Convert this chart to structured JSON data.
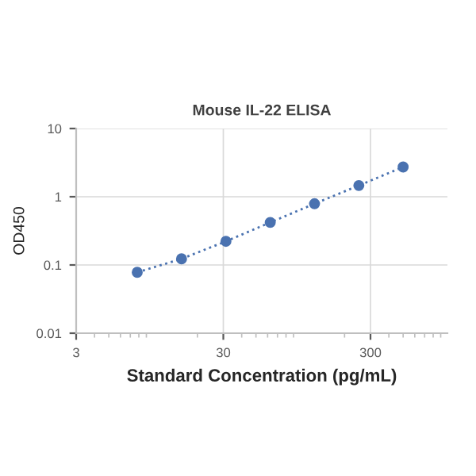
{
  "chart_data": {
    "type": "line",
    "title": "Mouse IL-22 ELISA",
    "xlabel": "Standard Concentration (pg/mL)",
    "ylabel": "OD450",
    "log": "xy",
    "xlim": [
      3,
      1000
    ],
    "xticks": [
      3,
      30,
      300
    ],
    "ylim": [
      0.01,
      10
    ],
    "yticks": [
      0.01,
      0.1,
      1,
      10
    ],
    "grid": true,
    "marker": "circle",
    "line_style": "dotted",
    "x": [
      7.8,
      15.6,
      31.25,
      62.5,
      125,
      250,
      500
    ],
    "series": [
      {
        "color": "#4a72b0",
        "values": [
          0.078,
          0.123,
          0.222,
          0.42,
          0.79,
          1.46,
          2.73
        ]
      }
    ]
  }
}
